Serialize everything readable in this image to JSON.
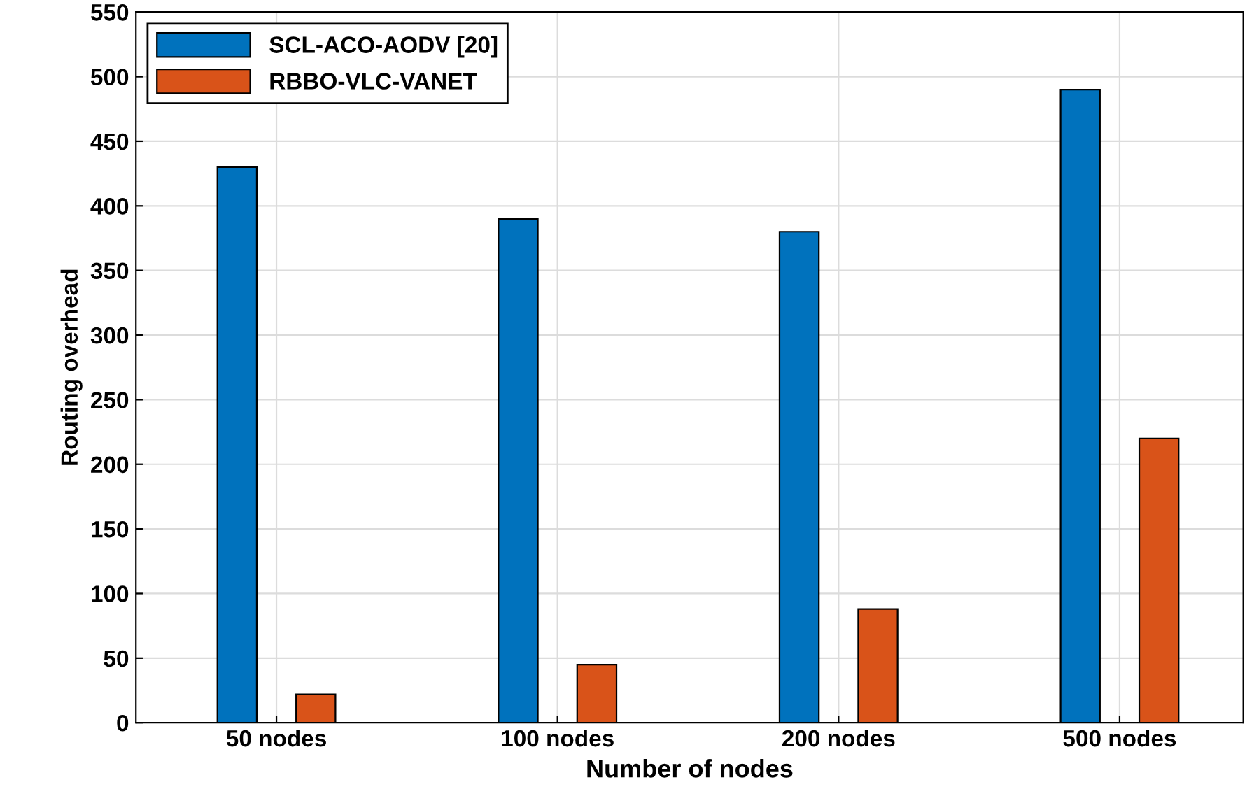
{
  "chart_data": {
    "type": "bar",
    "xlabel": "Number of nodes",
    "ylabel": "Routing overhead",
    "categories": [
      "50 nodes",
      "100 nodes",
      "200 nodes",
      "500 nodes"
    ],
    "series": [
      {
        "name": "SCL-ACO-AODV [20]",
        "color": "#0072bd",
        "values": [
          430,
          390,
          380,
          490
        ]
      },
      {
        "name": "RBBO-VLC-VANET",
        "color": "#d95319",
        "values": [
          22,
          45,
          88,
          220
        ]
      }
    ],
    "ylim": [
      0,
      550
    ],
    "yticks": [
      0,
      50,
      100,
      150,
      200,
      250,
      300,
      350,
      400,
      450,
      500,
      550
    ],
    "grid": true,
    "legend": "top left"
  }
}
